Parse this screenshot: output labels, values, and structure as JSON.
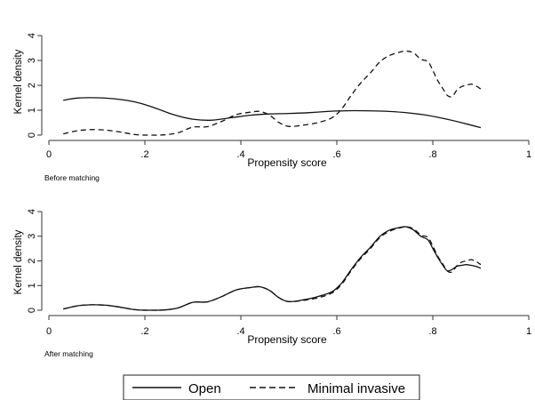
{
  "chart_data": [
    {
      "type": "line",
      "note": "Before matching",
      "xlabel": "Propensity score",
      "ylabel": "Kernel density",
      "xlim": [
        0,
        1
      ],
      "ylim": [
        0,
        4
      ],
      "xticks": [
        0,
        0.2,
        0.4,
        0.6,
        0.8,
        1
      ],
      "xtick_labels": [
        "0",
        ".2",
        ".4",
        ".6",
        ".8",
        "1"
      ],
      "yticks": [
        0,
        1,
        2,
        3,
        4
      ],
      "ytick_labels": [
        "0",
        "1",
        "2",
        "3",
        "4"
      ],
      "grid": false,
      "series": [
        {
          "name": "Open",
          "dash": "solid",
          "x": [
            0.03,
            0.06,
            0.1,
            0.14,
            0.18,
            0.22,
            0.26,
            0.3,
            0.34,
            0.38,
            0.42,
            0.46,
            0.5,
            0.54,
            0.58,
            0.62,
            0.66,
            0.7,
            0.74,
            0.78,
            0.82,
            0.86,
            0.9
          ],
          "y": [
            1.4,
            1.49,
            1.5,
            1.45,
            1.33,
            1.1,
            0.82,
            0.64,
            0.6,
            0.7,
            0.8,
            0.85,
            0.87,
            0.9,
            0.95,
            0.98,
            0.98,
            0.96,
            0.91,
            0.82,
            0.68,
            0.5,
            0.3
          ]
        },
        {
          "name": "Minimal invasive",
          "dash": "dashed",
          "x": [
            0.03,
            0.06,
            0.09,
            0.12,
            0.15,
            0.18,
            0.21,
            0.24,
            0.27,
            0.3,
            0.33,
            0.36,
            0.39,
            0.42,
            0.44,
            0.46,
            0.48,
            0.5,
            0.53,
            0.56,
            0.59,
            0.61,
            0.63,
            0.65,
            0.67,
            0.69,
            0.71,
            0.73,
            0.745,
            0.76,
            0.775,
            0.79,
            0.8,
            0.81,
            0.82,
            0.83,
            0.84,
            0.85,
            0.86,
            0.87,
            0.88,
            0.89,
            0.9
          ],
          "y": [
            0.05,
            0.18,
            0.22,
            0.2,
            0.12,
            0.02,
            0.0,
            0.01,
            0.1,
            0.32,
            0.34,
            0.55,
            0.82,
            0.92,
            0.95,
            0.8,
            0.5,
            0.35,
            0.4,
            0.5,
            0.7,
            1.05,
            1.6,
            2.1,
            2.5,
            2.95,
            3.2,
            3.33,
            3.38,
            3.3,
            3.05,
            2.95,
            2.6,
            2.2,
            1.9,
            1.6,
            1.55,
            1.8,
            1.95,
            2.0,
            2.05,
            1.98,
            1.85
          ]
        }
      ]
    },
    {
      "type": "line",
      "note": "After matching",
      "xlabel": "Propensity score",
      "ylabel": "Kernel density",
      "xlim": [
        0,
        1
      ],
      "ylim": [
        0,
        4
      ],
      "xticks": [
        0,
        0.2,
        0.4,
        0.6,
        0.8,
        1
      ],
      "xtick_labels": [
        "0",
        ".2",
        ".4",
        ".6",
        ".8",
        "1"
      ],
      "yticks": [
        0,
        1,
        2,
        3,
        4
      ],
      "ytick_labels": [
        "0",
        "1",
        "2",
        "3",
        "4"
      ],
      "grid": false,
      "series": [
        {
          "name": "Open",
          "dash": "solid",
          "x": [
            0.03,
            0.06,
            0.09,
            0.12,
            0.15,
            0.18,
            0.21,
            0.24,
            0.27,
            0.3,
            0.33,
            0.36,
            0.39,
            0.42,
            0.44,
            0.46,
            0.48,
            0.5,
            0.53,
            0.56,
            0.59,
            0.61,
            0.63,
            0.65,
            0.67,
            0.69,
            0.71,
            0.73,
            0.745,
            0.76,
            0.775,
            0.79,
            0.8,
            0.81,
            0.82,
            0.83,
            0.84,
            0.85,
            0.86,
            0.87,
            0.88,
            0.89,
            0.9
          ],
          "y": [
            0.05,
            0.18,
            0.22,
            0.2,
            0.12,
            0.02,
            0.0,
            0.01,
            0.1,
            0.32,
            0.34,
            0.55,
            0.82,
            0.92,
            0.95,
            0.8,
            0.5,
            0.35,
            0.42,
            0.55,
            0.75,
            1.1,
            1.65,
            2.15,
            2.55,
            3.0,
            3.25,
            3.35,
            3.38,
            3.25,
            3.0,
            2.85,
            2.5,
            2.15,
            1.85,
            1.6,
            1.65,
            1.78,
            1.82,
            1.85,
            1.82,
            1.78,
            1.7
          ]
        },
        {
          "name": "Minimal invasive",
          "dash": "dashed",
          "x": [
            0.03,
            0.06,
            0.09,
            0.12,
            0.15,
            0.18,
            0.21,
            0.24,
            0.27,
            0.3,
            0.33,
            0.36,
            0.39,
            0.42,
            0.44,
            0.46,
            0.48,
            0.5,
            0.53,
            0.56,
            0.59,
            0.61,
            0.63,
            0.65,
            0.67,
            0.69,
            0.71,
            0.73,
            0.745,
            0.76,
            0.775,
            0.79,
            0.8,
            0.81,
            0.82,
            0.83,
            0.84,
            0.85,
            0.86,
            0.87,
            0.88,
            0.89,
            0.9
          ],
          "y": [
            0.05,
            0.18,
            0.22,
            0.2,
            0.12,
            0.02,
            0.0,
            0.01,
            0.1,
            0.32,
            0.34,
            0.55,
            0.82,
            0.92,
            0.95,
            0.8,
            0.5,
            0.35,
            0.4,
            0.5,
            0.7,
            1.05,
            1.6,
            2.1,
            2.5,
            2.95,
            3.2,
            3.33,
            3.38,
            3.3,
            3.05,
            2.95,
            2.6,
            2.2,
            1.9,
            1.6,
            1.55,
            1.8,
            1.95,
            2.0,
            2.05,
            1.98,
            1.85
          ]
        }
      ]
    }
  ],
  "legend": {
    "placement": "bottom-center",
    "items": [
      {
        "label": "Open",
        "dash": "solid"
      },
      {
        "label": "Minimal invasive",
        "dash": "dashed"
      }
    ]
  }
}
